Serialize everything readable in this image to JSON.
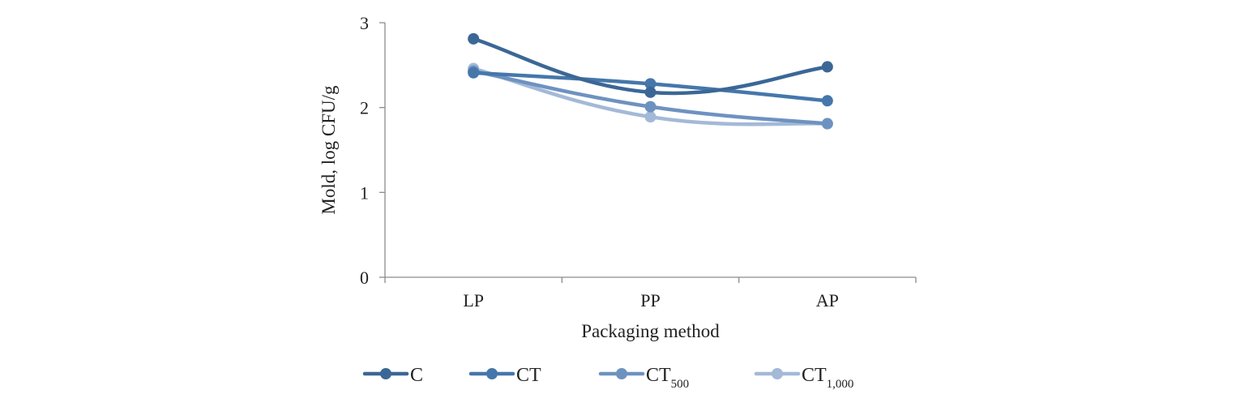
{
  "chart_data": {
    "type": "line",
    "title": "",
    "xlabel": "Packaging method",
    "ylabel": "Mold, log CFU/g",
    "categories": [
      "LP",
      "PP",
      "AP"
    ],
    "ylim": [
      0,
      3
    ],
    "yticks": [
      "0",
      "1",
      "2",
      "3"
    ],
    "grid": false,
    "legend_position": "bottom",
    "series": [
      {
        "name": "C",
        "name_sub": "",
        "color": "#3b6796",
        "values": [
          2.81,
          2.18,
          2.48
        ]
      },
      {
        "name": "CT",
        "name_sub": "",
        "color": "#4577ab",
        "values": [
          2.41,
          2.28,
          2.08
        ]
      },
      {
        "name": "CT",
        "name_sub": "500",
        "color": "#6e92c0",
        "values": [
          2.43,
          2.01,
          1.81
        ]
      },
      {
        "name": "CT",
        "name_sub": "1,000",
        "color": "#a3b9d7",
        "values": [
          2.46,
          1.89,
          1.81
        ]
      }
    ]
  }
}
